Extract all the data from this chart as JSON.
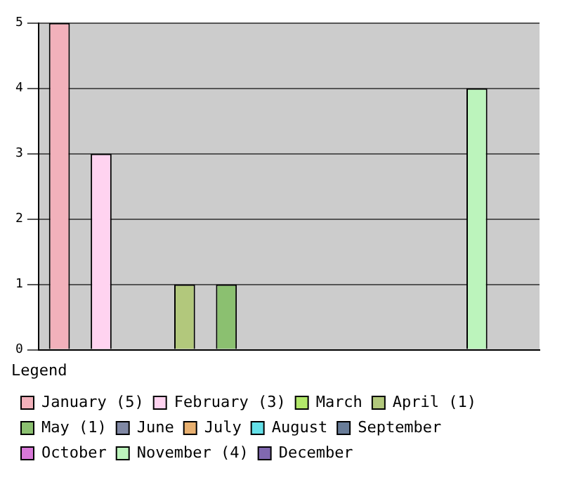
{
  "chart_data": {
    "type": "bar",
    "legend_title": "Legend",
    "legend": "bottom",
    "tick_labels": "y",
    "grid": "y",
    "categories": [
      null,
      null,
      null,
      null,
      null,
      null,
      null,
      null,
      null,
      null,
      null,
      null
    ],
    "series": [
      {
        "name": "January (5)",
        "color": "#f2b1bb",
        "values": [
          5,
          null,
          null,
          null,
          null,
          null,
          null,
          null,
          null,
          null,
          null,
          null
        ]
      },
      {
        "name": "February (3)",
        "color": "#ffd3f0",
        "values": [
          null,
          3,
          null,
          null,
          null,
          null,
          null,
          null,
          null,
          null,
          null,
          null
        ]
      },
      {
        "name": "March",
        "color": "#b2e86a",
        "values": [
          null,
          null,
          0,
          null,
          null,
          null,
          null,
          null,
          null,
          null,
          null,
          null
        ]
      },
      {
        "name": "April (1)",
        "color": "#b2c87c",
        "values": [
          null,
          null,
          null,
          1,
          null,
          null,
          null,
          null,
          null,
          null,
          null,
          null
        ]
      },
      {
        "name": "May (1)",
        "color": "#8bc070",
        "values": [
          null,
          null,
          null,
          null,
          1,
          null,
          null,
          null,
          null,
          null,
          null,
          null
        ]
      },
      {
        "name": "June",
        "color": "#8088a4",
        "values": [
          null,
          null,
          null,
          null,
          null,
          0,
          null,
          null,
          null,
          null,
          null,
          null
        ]
      },
      {
        "name": "July",
        "color": "#e8b070",
        "values": [
          null,
          null,
          null,
          null,
          null,
          null,
          0,
          null,
          null,
          null,
          null,
          null
        ]
      },
      {
        "name": "August",
        "color": "#64e0e8",
        "values": [
          null,
          null,
          null,
          null,
          null,
          null,
          null,
          0,
          null,
          null,
          null,
          null
        ]
      },
      {
        "name": "September",
        "color": "#687c98",
        "values": [
          null,
          null,
          null,
          null,
          null,
          null,
          null,
          null,
          0,
          null,
          null,
          null
        ]
      },
      {
        "name": "October",
        "color": "#d878d8",
        "values": [
          null,
          null,
          null,
          null,
          null,
          null,
          null,
          null,
          null,
          0,
          null,
          null
        ]
      },
      {
        "name": "November (4)",
        "color": "#bcf4bc",
        "values": [
          null,
          null,
          null,
          null,
          null,
          null,
          null,
          null,
          null,
          null,
          4,
          null
        ]
      },
      {
        "name": "December",
        "color": "#8068b0",
        "values": [
          null,
          null,
          null,
          null,
          null,
          null,
          null,
          null,
          null,
          null,
          null,
          0
        ]
      }
    ],
    "ylim": [
      0,
      5
    ],
    "yticks": [
      0,
      1,
      2,
      3,
      4,
      5
    ]
  }
}
